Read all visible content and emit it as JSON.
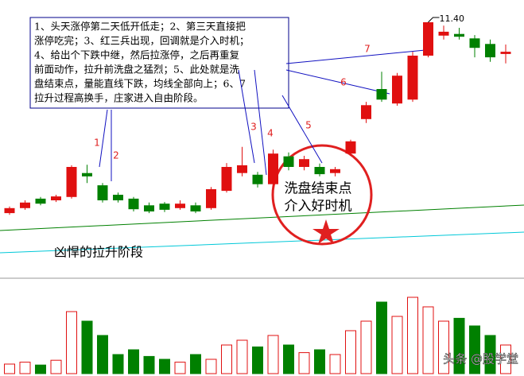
{
  "chart_data": {
    "type": "candlestick",
    "ylim": [
      6.8,
      11.8
    ],
    "open": [
      7.97,
      8.06,
      8.23,
      8.2,
      8.26,
      8.69,
      8.47,
      8.3,
      8.23,
      8.11,
      8.14,
      8.06,
      8.11,
      8.06,
      8.37,
      8.69,
      8.66,
      8.49,
      8.99,
      8.8,
      8.8,
      8.69,
      9.04,
      9.66,
      10.2,
      9.94,
      10.01,
      10.8,
      11.16,
      11.19,
      11.11,
      11.01,
      10.83
    ],
    "close": [
      8.06,
      8.16,
      8.14,
      8.27,
      8.8,
      8.63,
      8.2,
      8.2,
      8.04,
      8.0,
      8.03,
      8.14,
      8.0,
      8.4,
      8.8,
      8.83,
      8.49,
      9.04,
      8.8,
      8.94,
      8.67,
      8.76,
      9.26,
      9.91,
      10.01,
      10.44,
      10.8,
      11.4,
      11.23,
      11.14,
      10.94,
      10.77,
      10.87
    ],
    "high": [
      8.09,
      8.2,
      8.26,
      8.3,
      8.83,
      8.84,
      8.51,
      8.34,
      8.26,
      8.16,
      8.17,
      8.2,
      8.16,
      8.44,
      8.87,
      9.16,
      8.71,
      9.11,
      9.06,
      9.0,
      8.86,
      8.8,
      9.29,
      9.97,
      10.51,
      10.49,
      10.87,
      11.4,
      11.34,
      11.3,
      11.17,
      11.09,
      11.0
    ],
    "low": [
      7.94,
      8.03,
      8.11,
      8.17,
      8.23,
      8.51,
      8.16,
      8.16,
      8.0,
      7.97,
      7.99,
      8.03,
      7.97,
      8.03,
      8.34,
      8.63,
      8.43,
      8.43,
      8.74,
      8.74,
      8.63,
      8.63,
      9.0,
      9.59,
      9.97,
      9.9,
      9.97,
      10.77,
      11.09,
      11.09,
      10.77,
      10.69,
      10.66
    ],
    "volume": [
      10,
      12,
      9,
      14,
      65,
      55,
      40,
      20,
      25,
      18,
      15,
      12,
      20,
      15,
      30,
      35,
      28,
      40,
      30,
      22,
      25,
      20,
      45,
      55,
      75,
      60,
      80,
      70,
      55,
      58,
      50,
      40,
      30
    ],
    "vlim": [
      0,
      100
    ],
    "up_color": "#e01010",
    "down_color": "#008000",
    "high_label": "11.40",
    "note": [
      "1、头天涨停第二天低开低走；2、第三天直接把",
      "涨停吃完；3、红三兵出现，回调就是介入时机；",
      "4、给出个下跌中继，然后拉涨停，之后再重复",
      "前面动作，拉升前洗盘之猛烈；5、此处就是洗",
      "盘结束点，量能直线下跌，均线全部向上；6、7",
      "拉升过程高换手，庄家进入自由阶段。"
    ],
    "markers": [
      "1",
      "2",
      "3",
      "4",
      "5",
      "6",
      "7"
    ],
    "callout": [
      "洗盘结束点",
      "介入好时机"
    ],
    "stage_label": "凶悍的拉升阶段",
    "watermark": "头条 @股学堂"
  }
}
